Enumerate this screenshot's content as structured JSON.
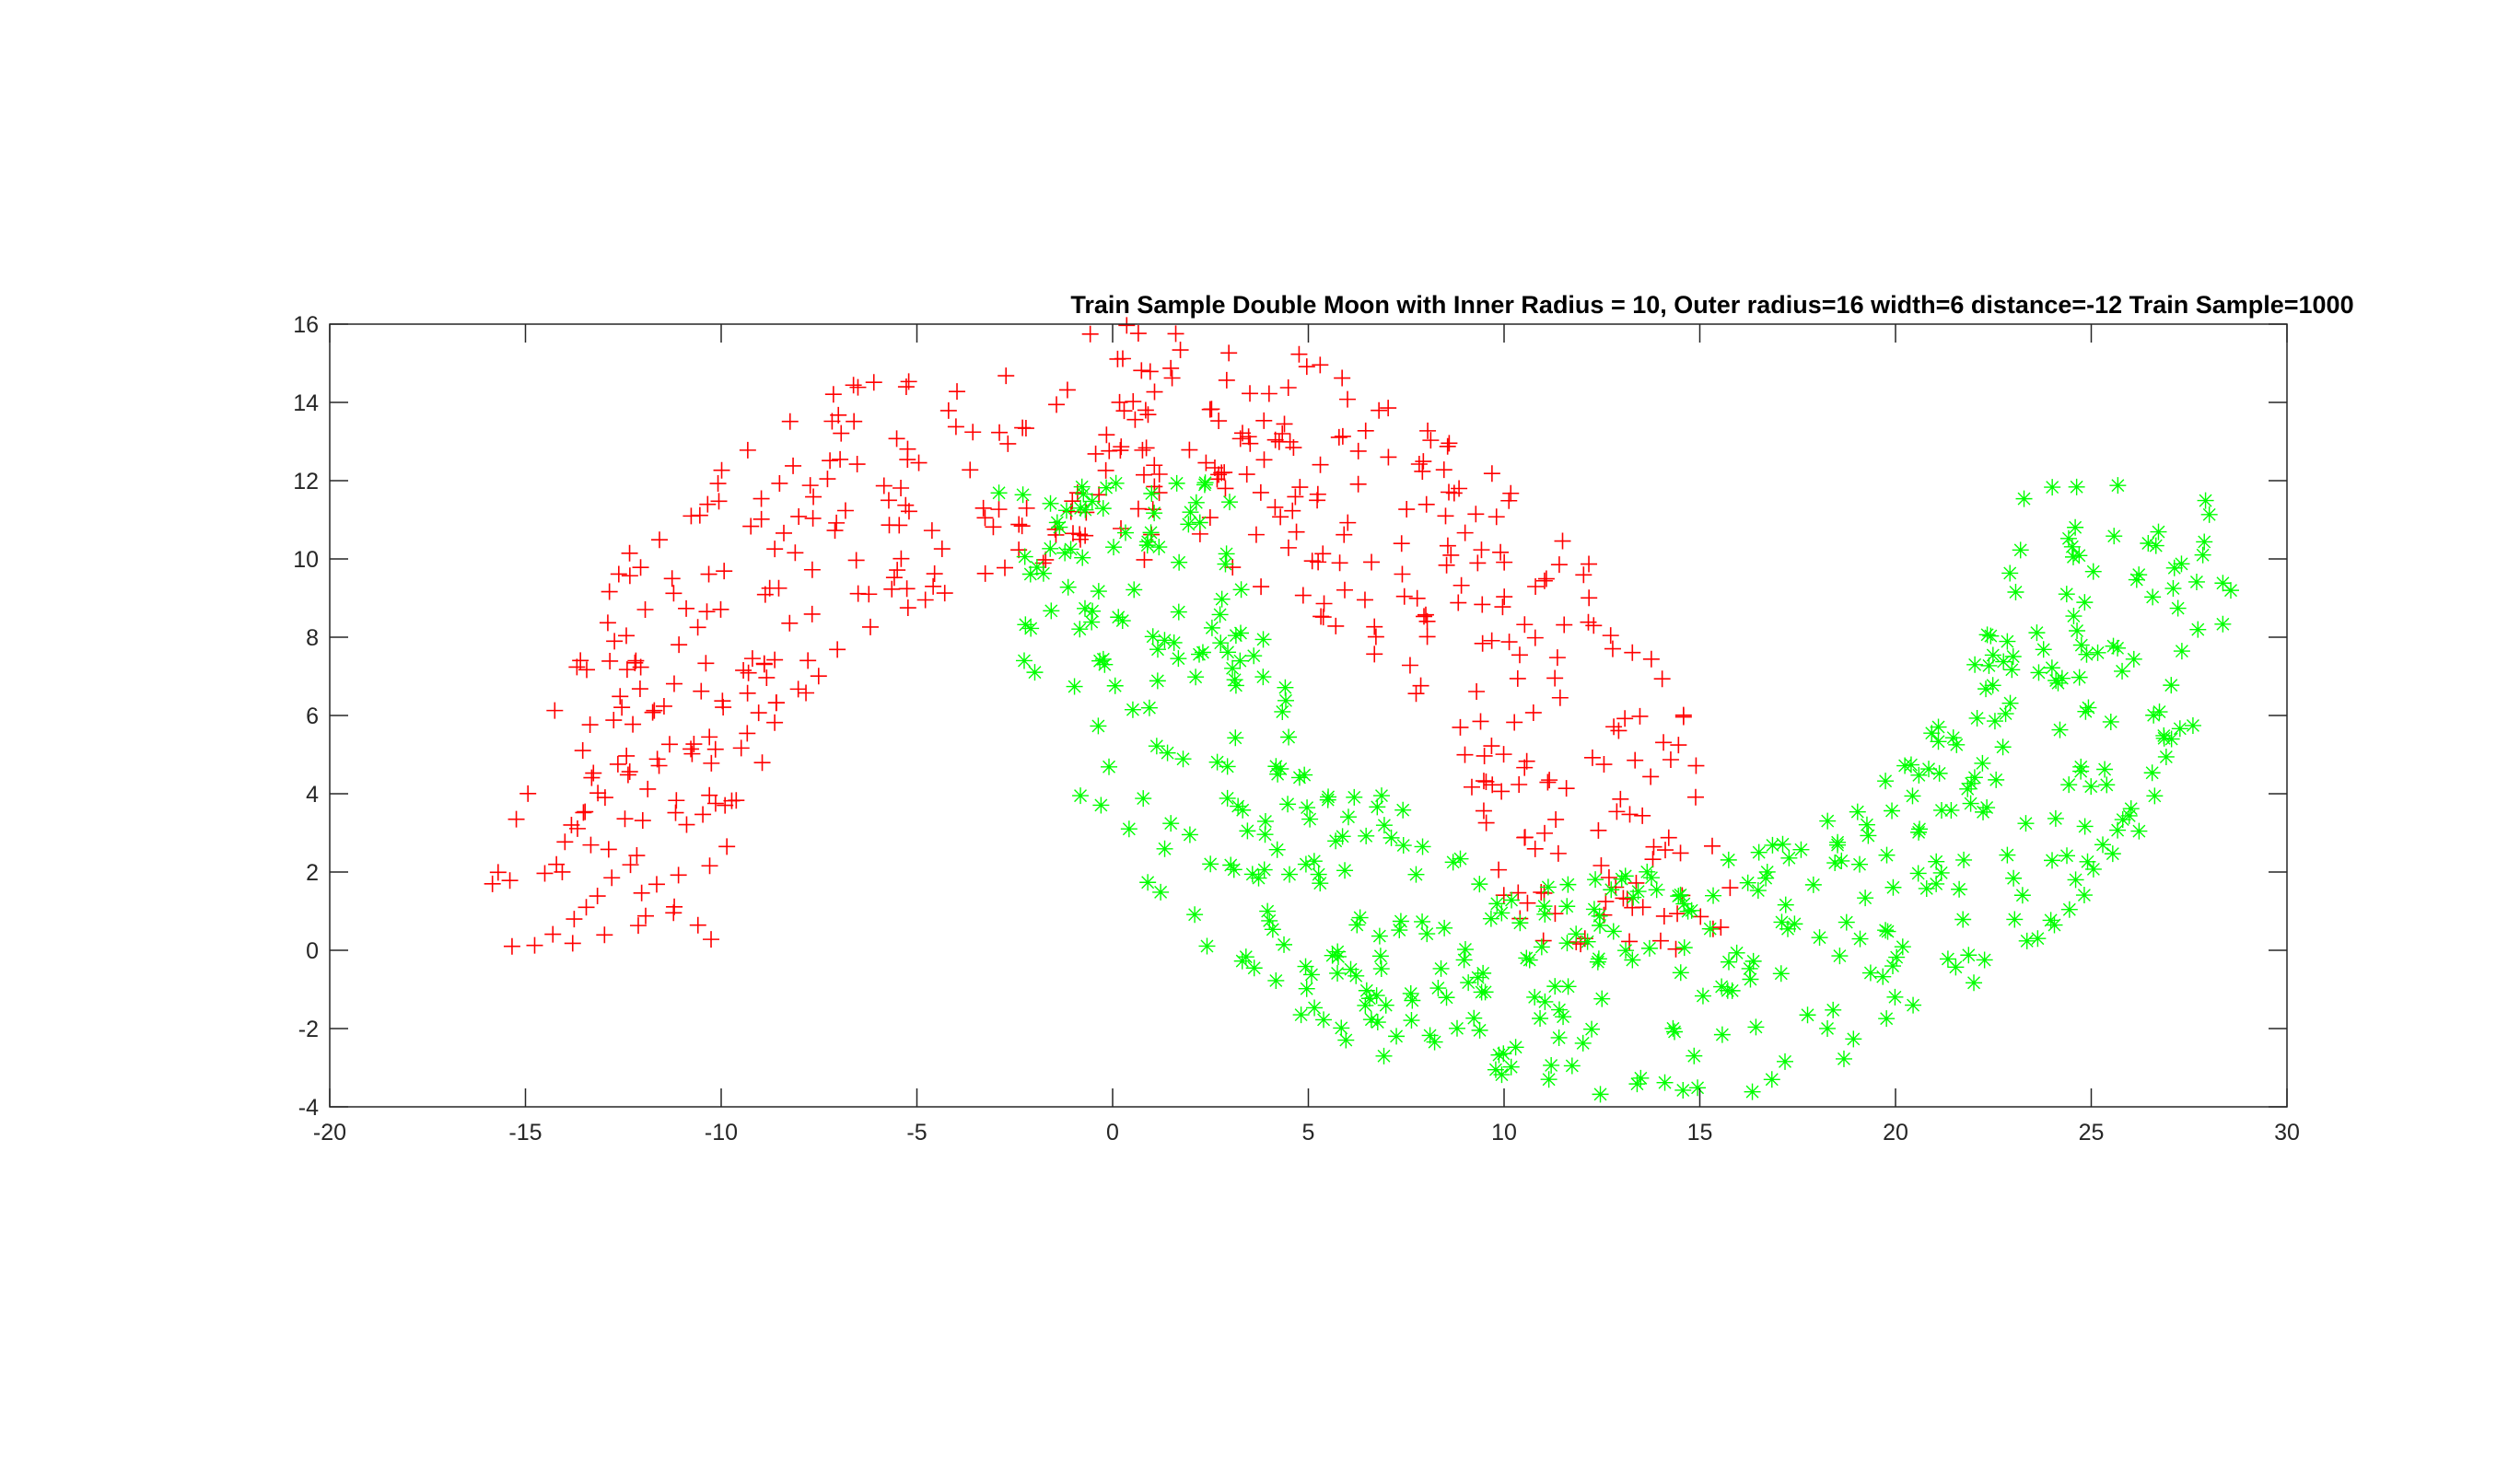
{
  "chart_data": {
    "type": "scatter",
    "title": "Train Sample Double Moon with Inner Radius = 10, Outer radius=16 width=6 distance=-12 Train Sample=1000",
    "xlabel": "",
    "ylabel": "",
    "xlim": [
      -20,
      30
    ],
    "ylim": [
      -4,
      16
    ],
    "xticks": [
      -20,
      -15,
      -10,
      -5,
      0,
      5,
      10,
      15,
      20,
      25,
      30
    ],
    "yticks": [
      -4,
      -2,
      0,
      2,
      4,
      6,
      8,
      10,
      12,
      14,
      16
    ],
    "grid": false,
    "legend": "none",
    "series": [
      {
        "marker": "plus",
        "color": "#ff0000",
        "count": 500,
        "generator": {
          "center_x": 0,
          "center_y": 0,
          "inner_radius": 10,
          "outer_radius": 16,
          "angle_from_deg": 0,
          "angle_to_deg": 180
        }
      },
      {
        "marker": "asterisk",
        "color": "#00ff00",
        "count": 500,
        "generator": {
          "center_x": 13,
          "center_y": 12,
          "inner_radius": 10,
          "outer_radius": 16,
          "angle_from_deg": 180,
          "angle_to_deg": 360
        }
      }
    ]
  }
}
